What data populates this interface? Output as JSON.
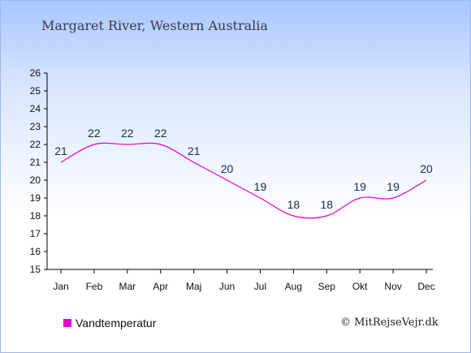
{
  "title": "Margaret River, Western Australia",
  "copyright": "© MitRejseVejr.dk",
  "colors": {
    "line": "#e000d0",
    "label": "#1a2a4a",
    "axis": "#000000"
  },
  "chart_data": {
    "type": "line",
    "categories": [
      "Jan",
      "Feb",
      "Mar",
      "Apr",
      "Maj",
      "Jun",
      "Jul",
      "Aug",
      "Sep",
      "Okt",
      "Nov",
      "Dec"
    ],
    "series": [
      {
        "name": "Vandtemperatur",
        "values": [
          21,
          22,
          22,
          22,
          21,
          20,
          19,
          18,
          18,
          19,
          19,
          20
        ]
      }
    ],
    "ylim": [
      15,
      26
    ],
    "yticks": [
      "15",
      "16",
      "17",
      "18",
      "19",
      "20",
      "21",
      "22",
      "23",
      "24",
      "25",
      "26"
    ],
    "data_labels": [
      "21",
      "22",
      "22",
      "22",
      "21",
      "20",
      "19",
      "18",
      "18",
      "19",
      "19",
      "20"
    ],
    "legend": "bottom-left",
    "grid": false
  }
}
